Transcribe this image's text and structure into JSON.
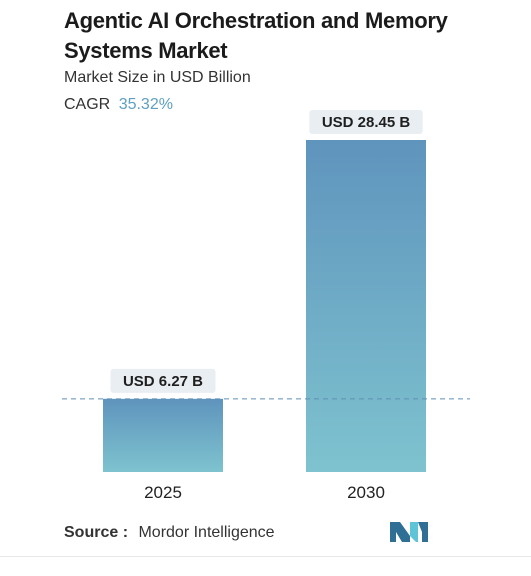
{
  "header": {
    "title": "Agentic AI Orchestration and Memory Systems Market",
    "subtitle": "Market Size in USD Billion",
    "cagr_label": "CAGR",
    "cagr_value": "35.32%"
  },
  "footer": {
    "source_label": "Source :",
    "source_value": "Mordor Intelligence"
  },
  "colors": {
    "bar_top": "#5f94bd",
    "bar_bottom": "#7ec3cf",
    "cagr": "#5e9fc0",
    "label_bg": "#e9eef2",
    "reference_line": "#5f8fb3",
    "logo_dark": "#2f6f96",
    "logo_light": "#5fc4d6"
  },
  "icons": {
    "logo": "mordor-intelligence-logo-icon"
  },
  "chart_data": {
    "type": "bar",
    "categories": [
      "2025",
      "2030"
    ],
    "values": [
      6.27,
      28.45
    ],
    "data_labels": [
      "USD 6.27 B",
      "USD 28.45 B"
    ],
    "title": "Agentic AI Orchestration and Memory Systems Market",
    "xlabel": "",
    "ylabel": "",
    "ylim": [
      0,
      28.45
    ],
    "grid": false,
    "reference_line_at": 6.27
  }
}
